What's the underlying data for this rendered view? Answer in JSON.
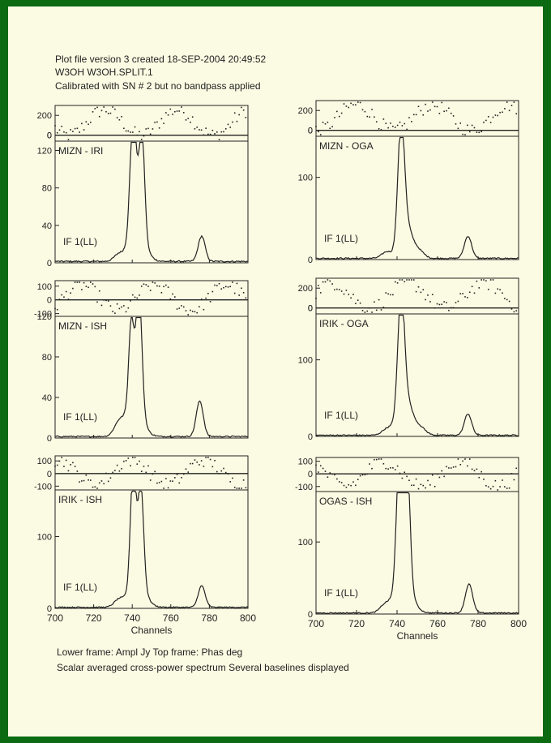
{
  "header": {
    "line1": "Plot file version 3  created 18-SEP-2004 20:49:52",
    "line2": "W3OH   W3OH.SPLIT.1",
    "line3": "Calibrated with SN # 2 but no bandpass applied"
  },
  "footer": {
    "line1": "Lower frame: Ampl Jy   Top frame: Phas deg",
    "line2": "Scalar averaged cross-power spectrum   Several baselines displayed"
  },
  "colors": {
    "background": "#0b6a12",
    "paper": "#fbfbe3",
    "ink": "#222222"
  },
  "chart_data": [
    {
      "type": "line",
      "baseline": "MIZN - IRI",
      "if_label": "IF 1(LL)",
      "xlabel": "",
      "xlim": [
        700,
        800
      ],
      "x_ticks": [],
      "amp_ylim": [
        0,
        130
      ],
      "amp_ticks": [
        0,
        40,
        80,
        120
      ],
      "phase_ticks": [
        0,
        200
      ],
      "phase_ylim": [
        -60,
        300
      ],
      "peaks": [
        {
          "x": 740.5,
          "y": 128,
          "w": 1.6
        },
        {
          "x": 745,
          "y": 112,
          "w": 1.4
        },
        {
          "x": 742.5,
          "y": 35,
          "w": 4
        },
        {
          "x": 733,
          "y": 7,
          "w": 2.5
        },
        {
          "x": 776,
          "y": 27,
          "w": 1.8
        }
      ],
      "noise_amp": 1.5
    },
    {
      "type": "line",
      "baseline": "MIZN - OGA",
      "if_label": "IF 1(LL)",
      "xlabel": "",
      "xlim": [
        700,
        800
      ],
      "x_ticks": [],
      "amp_ylim": [
        0,
        150
      ],
      "amp_ticks": [
        0,
        100
      ],
      "phase_ticks": [
        0,
        200
      ],
      "phase_ylim": [
        -60,
        300
      ],
      "peaks": [
        {
          "x": 742,
          "y": 145,
          "w": 1.6
        },
        {
          "x": 744.5,
          "y": 40,
          "w": 3
        },
        {
          "x": 735,
          "y": 8,
          "w": 2.5
        },
        {
          "x": 751,
          "y": 8,
          "w": 2.5
        },
        {
          "x": 775,
          "y": 27,
          "w": 1.8
        }
      ],
      "noise_amp": 1.5
    },
    {
      "type": "line",
      "baseline": "MIZN - ISH",
      "if_label": "IF 1(LL)",
      "xlabel": "",
      "xlim": [
        700,
        800
      ],
      "x_ticks": [],
      "amp_ylim": [
        0,
        120
      ],
      "amp_ticks": [
        0,
        40,
        80,
        120
      ],
      "phase_ticks": [
        -100,
        100
      ],
      "phase_ylim": [
        -120,
        140
      ],
      "peaks": [
        {
          "x": 739.5,
          "y": 82,
          "w": 1.3
        },
        {
          "x": 743.5,
          "y": 118,
          "w": 1.5
        },
        {
          "x": 741,
          "y": 35,
          "w": 4
        },
        {
          "x": 733,
          "y": 12,
          "w": 2.5
        },
        {
          "x": 775,
          "y": 35,
          "w": 1.8
        }
      ],
      "noise_amp": 1.2
    },
    {
      "type": "line",
      "baseline": "IRIK - OGA",
      "if_label": "IF 1(LL)",
      "xlabel": "",
      "xlim": [
        700,
        800
      ],
      "x_ticks": [],
      "amp_ylim": [
        0,
        160
      ],
      "amp_ticks": [
        0,
        100
      ],
      "phase_ticks": [
        0,
        200
      ],
      "phase_ylim": [
        -60,
        300
      ],
      "peaks": [
        {
          "x": 742,
          "y": 150,
          "w": 1.6
        },
        {
          "x": 744,
          "y": 50,
          "w": 3.5
        },
        {
          "x": 735,
          "y": 8,
          "w": 2.5
        },
        {
          "x": 752,
          "y": 8,
          "w": 2.5
        },
        {
          "x": 775,
          "y": 28,
          "w": 1.8
        }
      ],
      "noise_amp": 1.5
    },
    {
      "type": "line",
      "baseline": "IRIK - ISH",
      "if_label": "IF 1(LL)",
      "xlabel": "Channels",
      "xlim": [
        700,
        800
      ],
      "x_ticks": [
        700,
        720,
        740,
        760,
        780,
        800
      ],
      "amp_ylim": [
        0,
        165
      ],
      "amp_ticks": [
        0,
        100
      ],
      "phase_ticks": [
        -100,
        100
      ],
      "phase_ylim": [
        -130,
        140
      ],
      "peaks": [
        {
          "x": 740.5,
          "y": 165,
          "w": 1.4
        },
        {
          "x": 744.5,
          "y": 135,
          "w": 1.4
        },
        {
          "x": 742.5,
          "y": 40,
          "w": 4
        },
        {
          "x": 733,
          "y": 10,
          "w": 2.5
        },
        {
          "x": 776,
          "y": 30,
          "w": 1.8
        }
      ],
      "noise_amp": 1.5
    },
    {
      "type": "line",
      "baseline": "OGAS - ISH",
      "if_label": "IF 1(LL)",
      "xlabel": "Channels",
      "xlim": [
        700,
        800
      ],
      "x_ticks": [
        700,
        720,
        740,
        760,
        780,
        800
      ],
      "amp_ylim": [
        0,
        170
      ],
      "amp_ticks": [
        0,
        100
      ],
      "phase_ticks": [
        -100,
        100
      ],
      "phase_ylim": [
        -140,
        130
      ],
      "peaks": [
        {
          "x": 741,
          "y": 165,
          "w": 1.4
        },
        {
          "x": 745,
          "y": 165,
          "w": 1.4
        },
        {
          "x": 743,
          "y": 50,
          "w": 4
        },
        {
          "x": 734,
          "y": 10,
          "w": 2.5
        },
        {
          "x": 775.5,
          "y": 40,
          "w": 1.8
        }
      ],
      "noise_amp": 1.5
    }
  ]
}
